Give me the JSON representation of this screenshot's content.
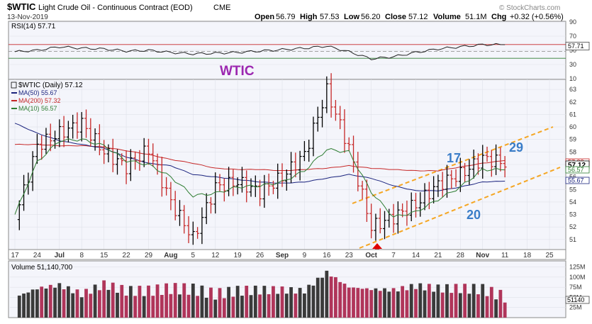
{
  "header": {
    "symbol": "$WTIC",
    "name": "Light Crude Oil - Continuous Contract (EOD)",
    "exchange": "CME",
    "date": "13-Nov-2019",
    "ohlc": {
      "open_label": "Open",
      "open": "56.79",
      "high_label": "High",
      "high": "57.53",
      "low_label": "Low",
      "low": "56.20",
      "close_label": "Close",
      "close": "57.12",
      "volume_label": "Volume",
      "volume": "51.1M",
      "chg_label": "Chg",
      "chg": "+0.32 (+0.56%)"
    },
    "watermark": "© StockCharts.com"
  },
  "rsi_panel": {
    "label": "RSI(14) 57.71",
    "ticks": [
      "90",
      "70",
      "50",
      "30",
      "10"
    ],
    "last_value": "57.71"
  },
  "price_panel": {
    "overlay_title": "WTIC",
    "legend": [
      {
        "text": "$WTIC (Daily) 57.12",
        "color": "#000000"
      },
      {
        "text": "MA(50) 55.67",
        "color": "#1a237e"
      },
      {
        "text": "MA(200) 57.32",
        "color": "#c62828"
      },
      {
        "text": "MA(10) 56.57",
        "color": "#2e7d32"
      }
    ],
    "y_ticks": [
      "63",
      "62",
      "61",
      "60",
      "59",
      "58",
      "57",
      "56",
      "55",
      "54",
      "53",
      "52",
      "51"
    ],
    "last_labels": [
      "57.32",
      "57.12",
      "56.57",
      "55.67"
    ],
    "annotations": [
      "17",
      "29",
      "20"
    ]
  },
  "x_axis": {
    "labels": [
      "17",
      "24",
      "Jul",
      "8",
      "15",
      "22",
      "29",
      "Aug",
      "5",
      "12",
      "19",
      "26",
      "Sep",
      "9",
      "16",
      "23",
      "Oct",
      "7",
      "14",
      "21",
      "28",
      "Nov",
      "11",
      "18",
      "25"
    ]
  },
  "volume_panel": {
    "label": "Volume 51,140,700",
    "ticks": [
      "125M",
      "100M",
      "75M",
      "50M",
      "25M"
    ],
    "last_value": "51140"
  },
  "colors": {
    "up": "#000000",
    "down": "#c62828",
    "ma50": "#1a237e",
    "ma200": "#c62828",
    "ma10": "#2e7d32",
    "channel": "#f5a623",
    "annotation": "#3a7dc8",
    "title": "#9c27b0",
    "panel_bg": "#f4f5fb",
    "grid": "#dfe2ea"
  },
  "chart_data": [
    {
      "type": "line",
      "title": "RSI(14)",
      "ylim": [
        10,
        90
      ],
      "x": [
        "17",
        "24",
        "Jul",
        "8",
        "15",
        "22",
        "29",
        "Aug",
        "5",
        "12",
        "19",
        "26",
        "Sep",
        "9",
        "16",
        "23",
        "Oct",
        "7",
        "14",
        "21",
        "28",
        "Nov",
        "11"
      ],
      "series": [
        {
          "name": "RSI(14)",
          "values": [
            48,
            50,
            55,
            53,
            52,
            49,
            50,
            47,
            45,
            46,
            47,
            49,
            51,
            53,
            56,
            48,
            38,
            41,
            47,
            52,
            55,
            58,
            58
          ]
        }
      ]
    },
    {
      "type": "bar",
      "title": "$WTIC (Daily) 57.12",
      "ylabel": "",
      "ylim": [
        50.2,
        63.8
      ],
      "x": [
        "17",
        "24",
        "Jul",
        "8",
        "15",
        "22",
        "29",
        "Aug",
        "5",
        "12",
        "19",
        "26",
        "Sep",
        "9",
        "16",
        "23",
        "Oct",
        "7",
        "14",
        "21",
        "28",
        "Nov",
        "11"
      ],
      "series": [
        {
          "name": "$WTIC (Daily)",
          "values": [
            52.6,
            58.5,
            59.5,
            60.3,
            58.0,
            56.8,
            58.2,
            54.0,
            51.1,
            55.2,
            55.6,
            54.8,
            56.0,
            57.8,
            62.9,
            58.3,
            52.0,
            52.8,
            53.8,
            55.4,
            56.2,
            57.5,
            57.12
          ]
        },
        {
          "name": "MA(10)",
          "values": [
            53.0,
            57.2,
            58.9,
            59.0,
            58.5,
            57.3,
            57.0,
            56.0,
            54.5,
            54.7,
            55.2,
            55.3,
            55.6,
            56.5,
            58.2,
            58.0,
            54.8,
            52.8,
            53.2,
            54.2,
            55.2,
            56.6,
            56.57
          ]
        },
        {
          "name": "MA(50)",
          "values": [
            60.3,
            59.5,
            58.9,
            58.6,
            58.3,
            57.6,
            57.1,
            56.9,
            56.2,
            56.0,
            55.8,
            55.6,
            55.5,
            55.6,
            55.9,
            56.2,
            55.9,
            55.3,
            54.9,
            54.9,
            55.2,
            55.6,
            55.67
          ]
        },
        {
          "name": "MA(200)",
          "values": [
            58.6,
            58.6,
            58.5,
            58.5,
            58.4,
            58.1,
            57.8,
            57.4,
            57.1,
            56.7,
            56.6,
            56.6,
            56.5,
            56.6,
            56.7,
            56.9,
            56.7,
            56.6,
            56.5,
            56.5,
            56.8,
            57.1,
            57.32
          ]
        }
      ]
    },
    {
      "type": "bar",
      "title": "Volume 51,140,700",
      "ylim": [
        0,
        140
      ],
      "ylabel": "",
      "x": [
        "17",
        "24",
        "Jul",
        "8",
        "15",
        "22",
        "29",
        "Aug",
        "5",
        "12",
        "19",
        "26",
        "Sep",
        "9",
        "16",
        "23",
        "Oct",
        "7",
        "14",
        "21",
        "28",
        "Nov",
        "11"
      ],
      "series": [
        {
          "name": "Volume",
          "values": [
            50,
            72,
            80,
            58,
            82,
            66,
            66,
            72,
            70,
            58,
            66,
            68,
            68,
            66,
            112,
            75,
            70,
            68,
            78,
            72,
            72,
            70,
            51
          ]
        }
      ]
    }
  ]
}
